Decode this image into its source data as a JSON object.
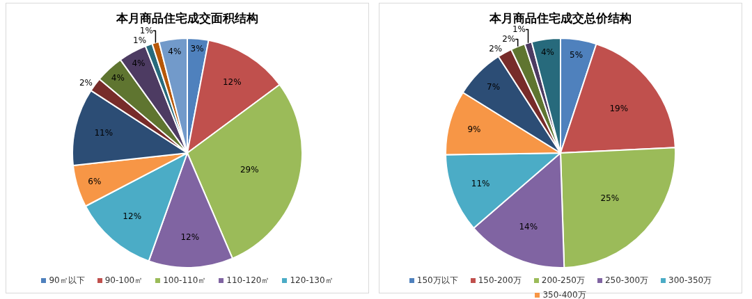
{
  "chart_data": [
    {
      "type": "pie",
      "title": "本月商品住宅成交面积结构",
      "legend": "bottom",
      "categories": [
        "90㎡以下",
        "90-100㎡",
        "100-110㎡",
        "110-120㎡",
        "120-130㎡",
        null,
        null,
        null,
        null,
        null,
        null,
        null,
        null
      ],
      "values": [
        3,
        12,
        29,
        12,
        12,
        6,
        11,
        2,
        4,
        4,
        1,
        1,
        4
      ],
      "colors": [
        "#4f81bd",
        "#c0504d",
        "#9bbb59",
        "#8064a2",
        "#4bacc6",
        "#f79646",
        "#2c4d75",
        "#772c2a",
        "#5f7530",
        "#4d3b62",
        "#276a7c",
        "#b65708",
        "#729aca"
      ],
      "value_labels": [
        "3%",
        "12%",
        "29%",
        "12%",
        "12%",
        "6%",
        "11%",
        "2%",
        "4%",
        "4%",
        "1%",
        "1%",
        "4%"
      ]
    },
    {
      "type": "pie",
      "title": "本月商品住宅成交总价结构",
      "legend": "bottom",
      "categories": [
        "150万以下",
        "150-200万",
        "200-250万",
        "250-300万",
        "300-350万",
        "350-400万",
        null,
        null,
        null,
        null,
        null
      ],
      "values": [
        5,
        19,
        25,
        14,
        11,
        9,
        7,
        2,
        2,
        1,
        4
      ],
      "colors": [
        "#4f81bd",
        "#c0504d",
        "#9bbb59",
        "#8064a2",
        "#4bacc6",
        "#f79646",
        "#2c4d75",
        "#772c2a",
        "#5f7530",
        "#4d3b62",
        "#276a7c"
      ],
      "value_labels": [
        "5%",
        "19%",
        "25%",
        "14%",
        "11%",
        "9%",
        "7%",
        "2%",
        "2%",
        "1%",
        "4%"
      ]
    }
  ]
}
